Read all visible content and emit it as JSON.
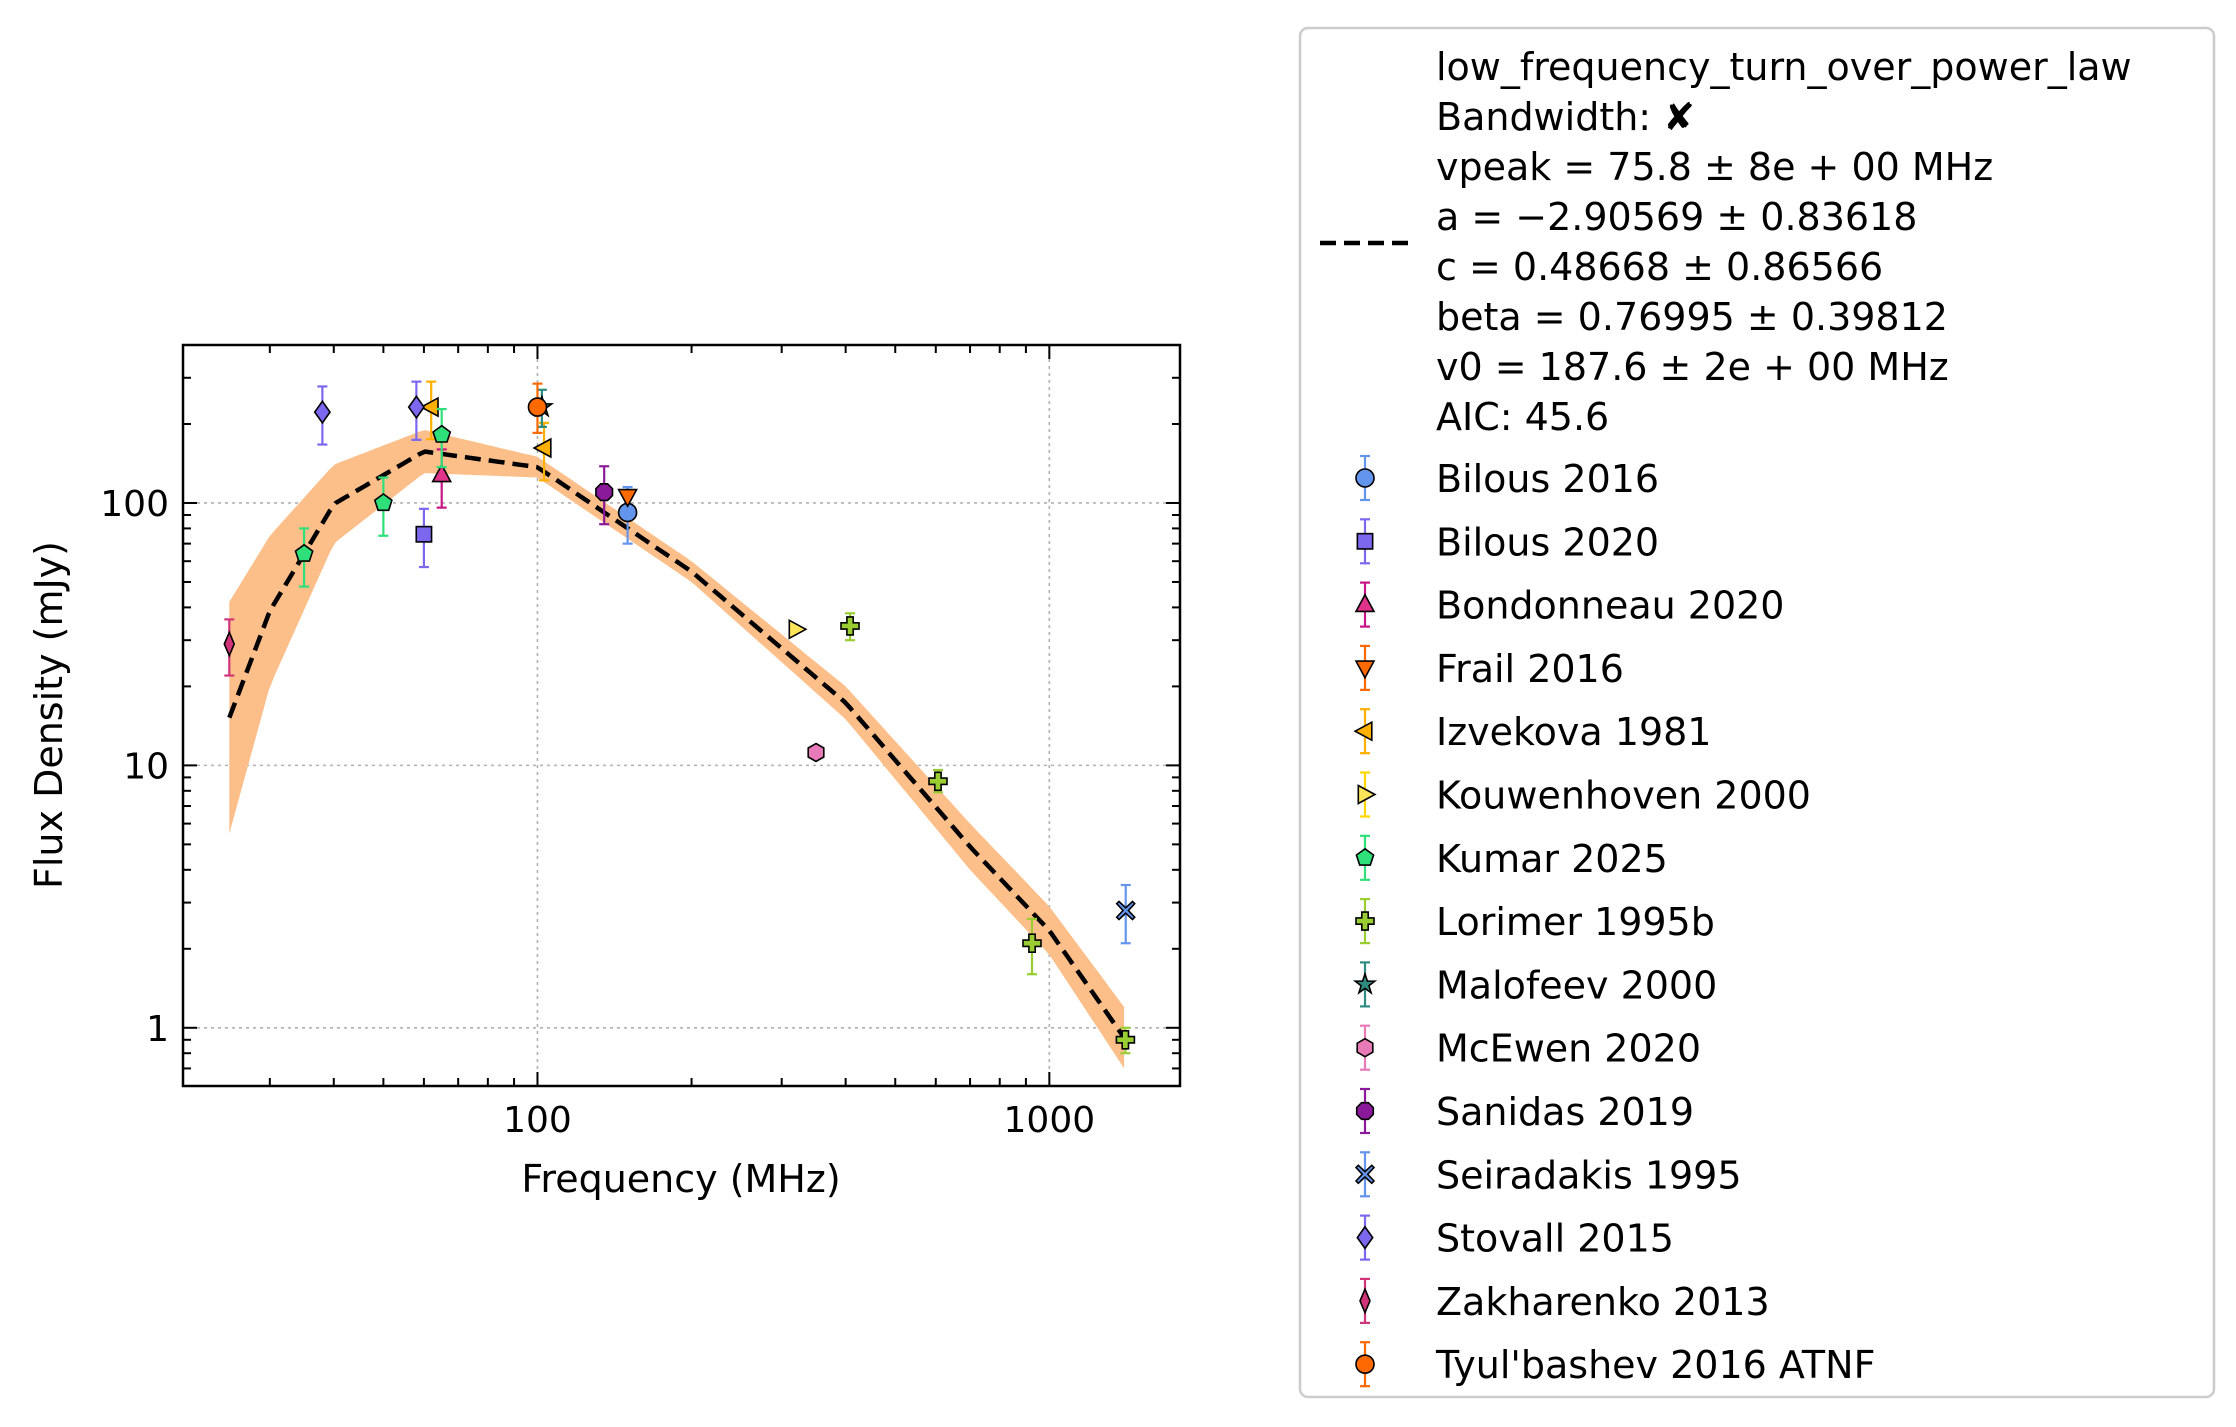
{
  "chart_data": {
    "type": "scatter",
    "xlabel": "Frequency (MHz)",
    "ylabel": "Flux Density (mJy)",
    "x_scale": "log",
    "y_scale": "log",
    "xlim": [
      20.3,
      1800
    ],
    "ylim": [
      0.6,
      400
    ],
    "x_ticks": [
      {
        "value": 100,
        "label": "100"
      },
      {
        "value": 1000,
        "label": "1000"
      }
    ],
    "y_ticks": [
      {
        "value": 1,
        "label": "1"
      },
      {
        "value": 10,
        "label": "10"
      },
      {
        "value": 100,
        "label": "100"
      }
    ],
    "grid": true,
    "legend_position": "outside right",
    "fit": {
      "name": "low_frequency_turn_over_power_law",
      "label_lines": [
        "low_frequency_turn_over_power_law",
        "Bandwidth: ✘",
        "vpeak = 75.8 ± 8e + 00 MHz",
        "a = −2.90569 ± 0.83618",
        "c = 0.48668 ± 0.86566",
        "beta = 0.76995 ± 0.39812",
        "v0 = 187.6 ± 2e + 00 MHz",
        "AIC: 45.6"
      ],
      "params": {
        "vpeak": 75.8,
        "a": -2.90569,
        "c": 0.48668,
        "beta": 0.76995,
        "v0": 187.6
      },
      "x_range": [
        25,
        1400
      ],
      "line_color": "#000000",
      "band_color": "#fdbf8a",
      "band_x": [
        25,
        30,
        40,
        60,
        100,
        200,
        400,
        700,
        1000,
        1400
      ],
      "band_upper": [
        42,
        75,
        140,
        190,
        150,
        60,
        20,
        6.0,
        2.9,
        1.2
      ],
      "band_lower": [
        5.5,
        20,
        70,
        130,
        125,
        50,
        15,
        4.0,
        1.9,
        0.7
      ]
    },
    "series": [
      {
        "name": "Bilous 2016",
        "marker": "circle",
        "color": "#6495ed",
        "ecolor": "#6495ed",
        "points": [
          {
            "x": 150,
            "y": 92,
            "yerr_lo": 70,
            "yerr_hi": 115
          }
        ]
      },
      {
        "name": "Bilous 2020",
        "marker": "square",
        "color": "#7b68ee",
        "ecolor": "#7b68ee",
        "points": [
          {
            "x": 60,
            "y": 76,
            "yerr_lo": 57,
            "yerr_hi": 95
          }
        ]
      },
      {
        "name": "Bondonneau 2020",
        "marker": "triangle-up",
        "color": "#e0338a",
        "ecolor": "#c71585",
        "points": [
          {
            "x": 65,
            "y": 128,
            "yerr_lo": 96,
            "yerr_hi": 160
          }
        ]
      },
      {
        "name": "Frail 2016",
        "marker": "triangle-down",
        "color": "#ff6a00",
        "ecolor": "#ff6a00",
        "points": [
          {
            "x": 150,
            "y": 106
          }
        ]
      },
      {
        "name": "Izvekova 1981",
        "marker": "triangle-left",
        "color": "#ffb000",
        "ecolor": "#ffb000",
        "points": [
          {
            "x": 62,
            "y": 232,
            "yerr_lo": 175,
            "yerr_hi": 290
          },
          {
            "x": 103,
            "y": 162,
            "yerr_lo": 122,
            "yerr_hi": 202
          }
        ]
      },
      {
        "name": "Kouwenhoven 2000",
        "marker": "triangle-right",
        "color": "#ffe45c",
        "ecolor": "#ffd700",
        "points": [
          {
            "x": 320,
            "y": 33
          }
        ]
      },
      {
        "name": "Kumar 2025",
        "marker": "pentagon",
        "color": "#2fe07a",
        "ecolor": "#2fe07a",
        "points": [
          {
            "x": 35,
            "y": 64,
            "yerr_lo": 48,
            "yerr_hi": 80
          },
          {
            "x": 50,
            "y": 100,
            "yerr_lo": 75,
            "yerr_hi": 125
          },
          {
            "x": 65,
            "y": 182,
            "yerr_lo": 137,
            "yerr_hi": 228
          }
        ]
      },
      {
        "name": "Lorimer 1995b",
        "marker": "plus",
        "color": "#9acd32",
        "ecolor": "#9acd32",
        "points": [
          {
            "x": 408,
            "y": 34,
            "yerr_lo": 30,
            "yerr_hi": 38
          },
          {
            "x": 606,
            "y": 8.7,
            "yerr_lo": 7.9,
            "yerr_hi": 9.6
          },
          {
            "x": 925,
            "y": 2.1,
            "yerr_lo": 1.6,
            "yerr_hi": 2.6
          },
          {
            "x": 1408,
            "y": 0.9,
            "yerr_lo": 0.8,
            "yerr_hi": 1.0
          }
        ]
      },
      {
        "name": "Malofeev 2000",
        "marker": "star",
        "color": "#2e8b80",
        "ecolor": "#2e8b80",
        "points": [
          {
            "x": 102,
            "y": 232,
            "yerr_lo": 195,
            "yerr_hi": 270
          }
        ]
      },
      {
        "name": "McEwen 2020",
        "marker": "hexagon",
        "color": "#e87ab8",
        "ecolor": "#e87ab8",
        "points": [
          {
            "x": 350,
            "y": 11.2
          }
        ]
      },
      {
        "name": "Sanidas 2019",
        "marker": "octagon",
        "color": "#8b1a9a",
        "ecolor": "#8b1a9a",
        "points": [
          {
            "x": 135,
            "y": 110,
            "yerr_lo": 83,
            "yerr_hi": 138
          }
        ]
      },
      {
        "name": "Seiradakis 1995",
        "marker": "x",
        "color": "#6495ed",
        "ecolor": "#6495ed",
        "points": [
          {
            "x": 1410,
            "y": 2.8,
            "yerr_lo": 2.1,
            "yerr_hi": 3.5
          }
        ]
      },
      {
        "name": "Stovall 2015",
        "marker": "diamond",
        "color": "#7b68ee",
        "ecolor": "#7b68ee",
        "points": [
          {
            "x": 38,
            "y": 222,
            "yerr_lo": 167,
            "yerr_hi": 278
          },
          {
            "x": 58,
            "y": 232,
            "yerr_lo": 174,
            "yerr_hi": 290
          }
        ]
      },
      {
        "name": "Zakharenko 2013",
        "marker": "thin-diamond",
        "color": "#d0357a",
        "ecolor": "#d0357a",
        "points": [
          {
            "x": 25,
            "y": 29,
            "yerr_lo": 22,
            "yerr_hi": 36
          }
        ]
      },
      {
        "name": "Tyul'bashev 2016 ATNF",
        "marker": "circle",
        "color": "#ff6a00",
        "ecolor": "#ff6a00",
        "points": [
          {
            "x": 100,
            "y": 232,
            "yerr_lo": 185,
            "yerr_hi": 285
          }
        ]
      }
    ]
  }
}
